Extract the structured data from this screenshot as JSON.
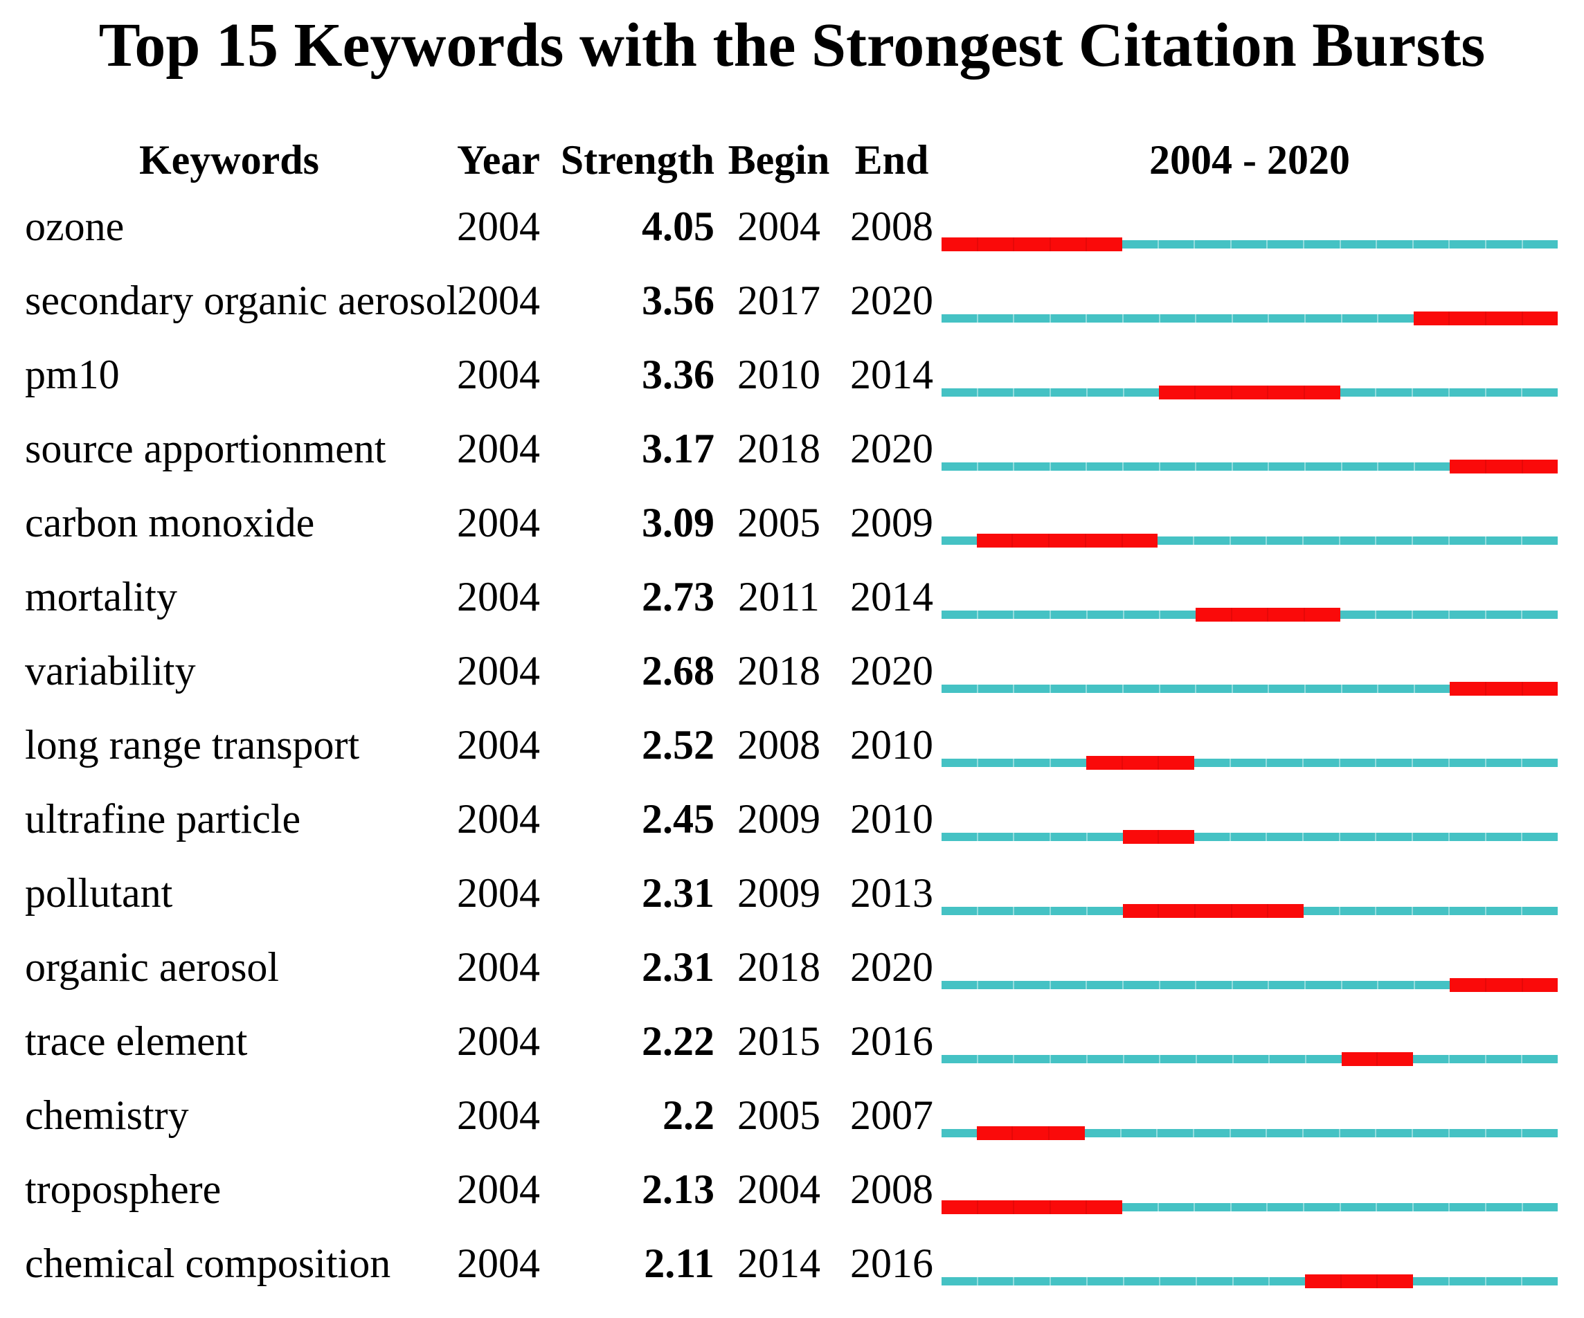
{
  "title": "Top 15 Keywords with the Strongest Citation Bursts",
  "header": {
    "keywords": "Keywords",
    "year": "Year",
    "strength": "Strength",
    "begin": "Begin",
    "end": "End",
    "timeline": "2004 - 2020"
  },
  "chart_data": {
    "type": "table",
    "title": "Top 15 Keywords with the Strongest Citation Bursts",
    "timeline_label": "2004 - 2020",
    "x_range": [
      2004,
      2020
    ],
    "years_per_bar": 17,
    "colors": {
      "burst": "#FA0A0A",
      "burst_divider": "#E60808",
      "baseline": "#45C2C4",
      "baseline_divider": "#94DCDD",
      "text": "#000000",
      "background": "#ffffff"
    },
    "legend_note": "red segment = burst period (Begin-End), teal segment = remaining 2004-2020 timeline",
    "rows": [
      {
        "keyword": "ozone",
        "year": "2004",
        "strength": "4.05",
        "begin": 2004,
        "end": 2008
      },
      {
        "keyword": "secondary organic aerosol",
        "year": "2004",
        "strength": "3.56",
        "begin": 2017,
        "end": 2020
      },
      {
        "keyword": "pm10",
        "year": "2004",
        "strength": "3.36",
        "begin": 2010,
        "end": 2014
      },
      {
        "keyword": "source apportionment",
        "year": "2004",
        "strength": "3.17",
        "begin": 2018,
        "end": 2020
      },
      {
        "keyword": "carbon monoxide",
        "year": "2004",
        "strength": "3.09",
        "begin": 2005,
        "end": 2009
      },
      {
        "keyword": "mortality",
        "year": "2004",
        "strength": "2.73",
        "begin": 2011,
        "end": 2014
      },
      {
        "keyword": "variability",
        "year": "2004",
        "strength": "2.68",
        "begin": 2018,
        "end": 2020
      },
      {
        "keyword": "long range transport",
        "year": "2004",
        "strength": "2.52",
        "begin": 2008,
        "end": 2010
      },
      {
        "keyword": "ultrafine particle",
        "year": "2004",
        "strength": "2.45",
        "begin": 2009,
        "end": 2010
      },
      {
        "keyword": "pollutant",
        "year": "2004",
        "strength": "2.31",
        "begin": 2009,
        "end": 2013
      },
      {
        "keyword": "organic aerosol",
        "year": "2004",
        "strength": "2.31",
        "begin": 2018,
        "end": 2020
      },
      {
        "keyword": "trace element",
        "year": "2004",
        "strength": "2.22",
        "begin": 2015,
        "end": 2016
      },
      {
        "keyword": "chemistry",
        "year": "2004",
        "strength": "2.2",
        "begin": 2005,
        "end": 2007
      },
      {
        "keyword": "troposphere",
        "year": "2004",
        "strength": "2.13",
        "begin": 2004,
        "end": 2008
      },
      {
        "keyword": "chemical composition",
        "year": "2004",
        "strength": "2.11",
        "begin": 2014,
        "end": 2016
      }
    ],
    "layout": {
      "first_row_top": 274,
      "row_pitch": 107
    }
  }
}
